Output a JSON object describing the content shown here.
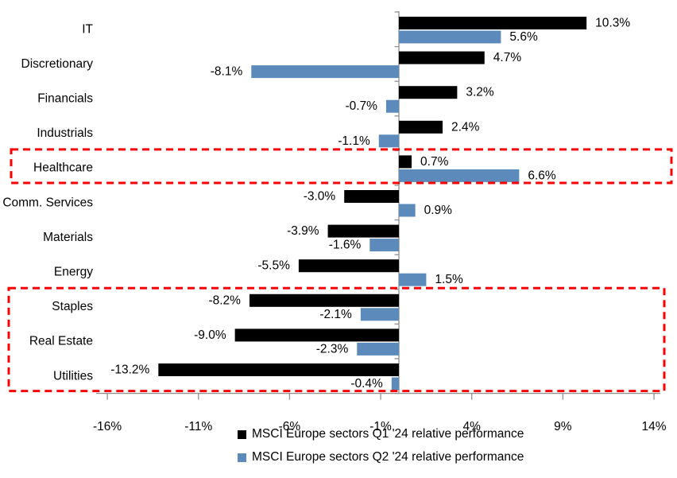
{
  "chart_data": {
    "type": "bar",
    "orientation": "horizontal",
    "title": "",
    "categories": [
      "IT",
      "Discretionary",
      "Financials",
      "Industrials",
      "Healthcare",
      "Comm. Services",
      "Materials",
      "Energy",
      "Staples",
      "Real Estate",
      "Utilities"
    ],
    "series": [
      {
        "name": "MSCI Europe sectors Q1 '24 relative performance",
        "color": "#000000",
        "values": [
          10.3,
          4.7,
          3.2,
          2.4,
          0.7,
          -3.0,
          -3.9,
          -5.5,
          -8.2,
          -9.0,
          -13.2
        ],
        "labels": [
          "10.3%",
          "4.7%",
          "3.2%",
          "2.4%",
          "0.7%",
          "-3.0%",
          "-3.9%",
          "-5.5%",
          "-8.2%",
          "-9.0%",
          "-13.2%"
        ]
      },
      {
        "name": "MSCI Europe sectors Q2 '24 relative performance",
        "color": "#5B8ABB",
        "values": [
          5.6,
          -8.1,
          -0.7,
          -1.1,
          6.6,
          0.9,
          -1.6,
          1.5,
          -2.1,
          -2.3,
          -0.4
        ],
        "labels": [
          "5.6%",
          "-8.1%",
          "-0.7%",
          "-1.1%",
          "6.6%",
          "0.9%",
          "-1.6%",
          "1.5%",
          "-2.1%",
          "-2.3%",
          "-0.4%"
        ]
      }
    ],
    "x_axis": {
      "tick_values": [
        -16,
        -11,
        -6,
        -1,
        4,
        9,
        14
      ],
      "tick_labels": [
        "-16%",
        "-11%",
        "-6%",
        "-1%",
        "4%",
        "9%",
        "14%"
      ],
      "min": -16,
      "max": 14,
      "grid": false
    },
    "highlights": [
      {
        "label": "healthcare-box",
        "categories": [
          "Healthcare"
        ],
        "color": "#FF0000",
        "style": "dashed"
      },
      {
        "label": "defensives-box",
        "categories": [
          "Staples",
          "Real Estate",
          "Utilities"
        ],
        "color": "#FF0000",
        "style": "dashed"
      }
    ],
    "legend_position": "bottom"
  },
  "legend": {
    "items": [
      {
        "label": "MSCI Europe sectors Q1 '24 relative performance",
        "color": "#000000"
      },
      {
        "label": "MSCI Europe sectors Q2 '24 relative performance",
        "color": "#5B8ABB"
      }
    ]
  }
}
